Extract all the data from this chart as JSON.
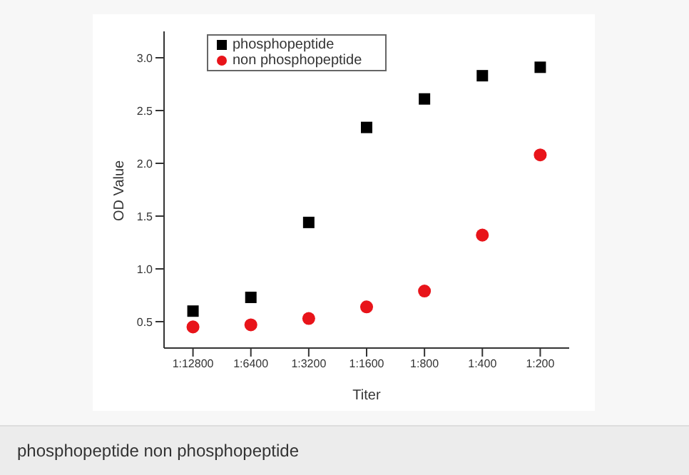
{
  "chart_data": {
    "type": "scatter",
    "xlabel": "Titer",
    "ylabel": "OD Value",
    "categories": [
      "1:12800",
      "1:6400",
      "1:3200",
      "1:1600",
      "1:800",
      "1:400",
      "1:200"
    ],
    "series": [
      {
        "name": "phosphopeptide",
        "color": "#000000",
        "marker": "square",
        "values": [
          0.6,
          0.73,
          1.44,
          2.34,
          2.61,
          2.83,
          2.91
        ]
      },
      {
        "name": "non phosphopeptide",
        "color": "#e8141a",
        "marker": "circle",
        "values": [
          0.45,
          0.47,
          0.53,
          0.64,
          0.79,
          1.32,
          2.08
        ]
      }
    ],
    "ylim": [
      0.25,
      3.25
    ],
    "yticks": [
      0.5,
      {
        "value": 1,
        "label": "1.0"
      },
      1.5,
      {
        "value": 2,
        "label": "2.0"
      },
      2.5,
      {
        "value": 3,
        "label": "3.0"
      }
    ],
    "legend": "top left",
    "grid": false,
    "annotations": [
      "phosphopeptide non phosphopeptide"
    ]
  }
}
